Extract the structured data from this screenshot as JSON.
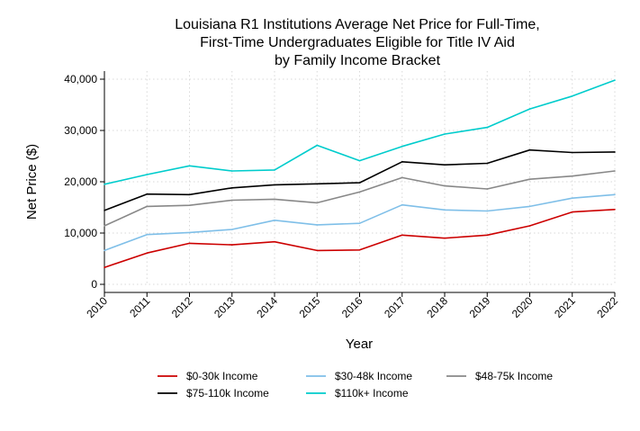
{
  "chart_data": {
    "type": "line",
    "title_lines": [
      "Louisiana R1 Institutions Average Net Price for Full-Time,",
      "First-Time Undergraduates Eligible for Title IV Aid",
      "by Family Income Bracket"
    ],
    "xlabel": "Year",
    "ylabel": "Net Price ($)",
    "x": [
      "2010",
      "2011",
      "2012",
      "2013",
      "2014",
      "2015",
      "2016",
      "2017",
      "2018",
      "2019",
      "2020",
      "2021",
      "2022"
    ],
    "y_ticks": [
      0,
      10000,
      20000,
      30000,
      40000
    ],
    "y_tick_labels": [
      "0",
      "10,000",
      "20,000",
      "30,000",
      "40,000"
    ],
    "ylim": [
      0,
      40000
    ],
    "grid": true,
    "legend_position": "bottom",
    "series": [
      {
        "name": "$0-30k Income",
        "color": "#cc0000",
        "values": [
          3300,
          6100,
          8000,
          7700,
          8300,
          6600,
          6700,
          9600,
          9000,
          9600,
          11400,
          14100,
          14600
        ]
      },
      {
        "name": "$30-48k Income",
        "color": "#7fbfe8",
        "values": [
          6600,
          9700,
          10100,
          10700,
          12500,
          11600,
          11900,
          15500,
          14500,
          14300,
          15200,
          16800,
          17500
        ]
      },
      {
        "name": "$48-75k Income",
        "color": "#888888",
        "values": [
          11400,
          15200,
          15400,
          16400,
          16600,
          15900,
          18000,
          20800,
          19200,
          18600,
          20500,
          21100,
          22100
        ]
      },
      {
        "name": "$75-110k Income",
        "color": "#000000",
        "values": [
          14400,
          17600,
          17500,
          18800,
          19400,
          19600,
          19800,
          23900,
          23300,
          23600,
          26200,
          25700,
          25800
        ]
      },
      {
        "name": "$110k+ Income",
        "color": "#00cccc",
        "values": [
          19500,
          21400,
          23100,
          22100,
          22300,
          27100,
          24100,
          26900,
          29300,
          30600,
          34200,
          36700,
          39800
        ]
      }
    ]
  }
}
